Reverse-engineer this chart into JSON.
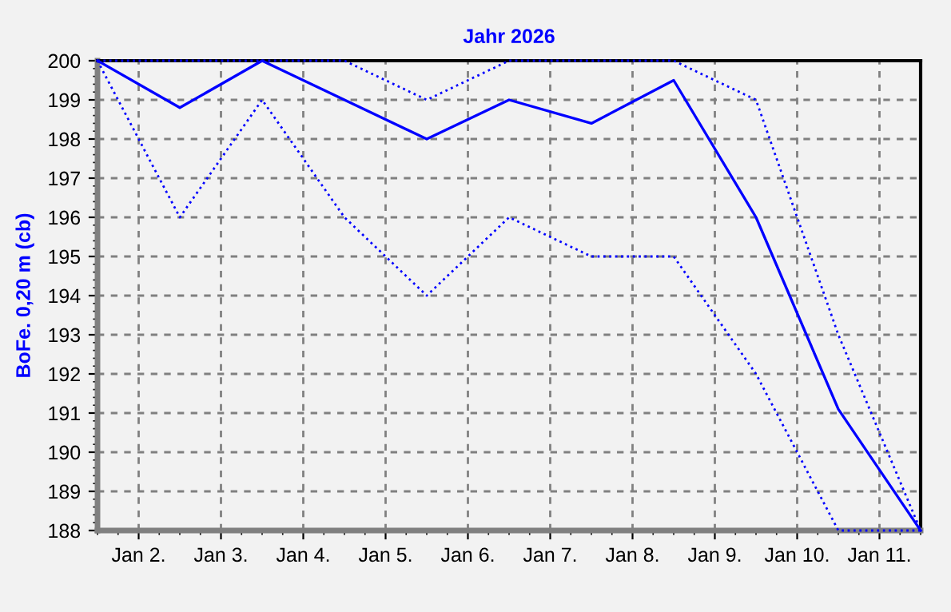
{
  "chart_data": {
    "type": "line",
    "title": "Jahr 2026",
    "ylabel": "BoFe. 0,20 m (cb)",
    "x": [
      "2026-01-01T12:00",
      "2026-01-02T12:00",
      "2026-01-03T12:00",
      "2026-01-04T12:00",
      "2026-01-05T12:00",
      "2026-01-06T12:00",
      "2026-01-07T12:00",
      "2026-01-08T12:00",
      "2026-01-09T12:00",
      "2026-01-10T12:00",
      "2026-01-11T12:00"
    ],
    "series": [
      {
        "color": "#0000ff",
        "line_style": "dotted",
        "values": [
          200,
          200,
          200,
          200,
          199,
          200,
          200,
          200,
          199,
          193,
          188
        ]
      },
      {
        "color": "#0000ff",
        "line_style": "solid",
        "values": [
          200,
          198.8,
          200,
          199,
          198,
          199,
          198.4,
          199.5,
          196,
          191.1,
          188
        ]
      },
      {
        "color": "#0000ff",
        "line_style": "dotted",
        "values": [
          200,
          196,
          199,
          196,
          194,
          196,
          195,
          195,
          192,
          188,
          188
        ]
      }
    ],
    "xlim": [
      "2026-01-01T12:00",
      "2026-01-11T12:00"
    ],
    "xticks": [
      {
        "value": "2026-01-02",
        "label": "Jan 2."
      },
      {
        "value": "2026-01-03",
        "label": "Jan 3."
      },
      {
        "value": "2026-01-04",
        "label": "Jan 4."
      },
      {
        "value": "2026-01-05",
        "label": "Jan 5."
      },
      {
        "value": "2026-01-06",
        "label": "Jan 6."
      },
      {
        "value": "2026-01-07",
        "label": "Jan 7."
      },
      {
        "value": "2026-01-08",
        "label": "Jan 8."
      },
      {
        "value": "2026-01-09",
        "label": "Jan 9."
      },
      {
        "value": "2026-01-10",
        "label": "Jan 10."
      },
      {
        "value": "2026-01-11",
        "label": "Jan 11."
      }
    ],
    "ylim": [
      188,
      200
    ],
    "yticks": [
      188,
      189,
      190,
      191,
      192,
      193,
      194,
      195,
      196,
      197,
      198,
      199,
      200
    ],
    "grid": true,
    "legend": false,
    "marker": "none"
  }
}
